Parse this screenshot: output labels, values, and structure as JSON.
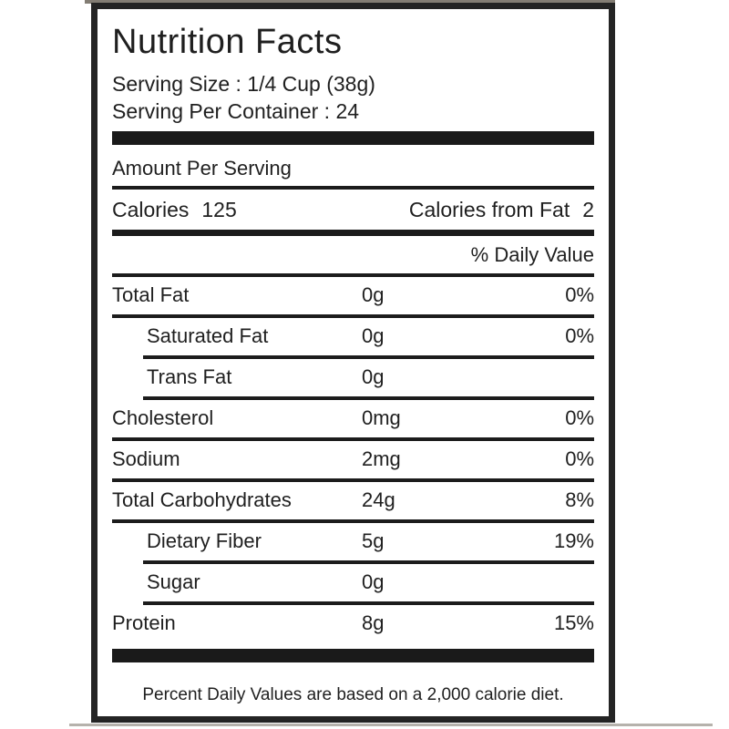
{
  "label": {
    "title": "Nutrition Facts",
    "serving_size": "Serving Size : 1/4 Cup (38g)",
    "serving_per_container": "Serving Per Container : 24",
    "amount_per_serving": "Amount Per Serving",
    "calories_label": "Calories",
    "calories_value": "125",
    "calories_from_fat_label": "Calories from Fat",
    "calories_from_fat_value": "2",
    "daily_value_header": "% Daily Value",
    "rows": [
      {
        "name": "Total Fat",
        "amount": "0g",
        "daily_value": "0%"
      },
      {
        "name": "Saturated Fat",
        "amount": "0g",
        "daily_value": "0%"
      },
      {
        "name": "Trans Fat",
        "amount": "0g",
        "daily_value": ""
      },
      {
        "name": "Cholesterol",
        "amount": "0mg",
        "daily_value": "0%"
      },
      {
        "name": "Sodium",
        "amount": "2mg",
        "daily_value": "0%"
      },
      {
        "name": "Total Carbohydrates",
        "amount": "24g",
        "daily_value": "8%"
      },
      {
        "name": "Dietary Fiber",
        "amount": "5g",
        "daily_value": "19%"
      },
      {
        "name": "Sugar",
        "amount": "0g",
        "daily_value": ""
      },
      {
        "name": "Protein",
        "amount": "8g",
        "daily_value": "15%"
      }
    ],
    "footnote": "Percent Daily Values are based on a 2,000 calorie diet.",
    "colors": {
      "text": "#1f1f1f",
      "border": "#242424",
      "bar": "#1a1a1a",
      "background": "#ffffff"
    }
  }
}
